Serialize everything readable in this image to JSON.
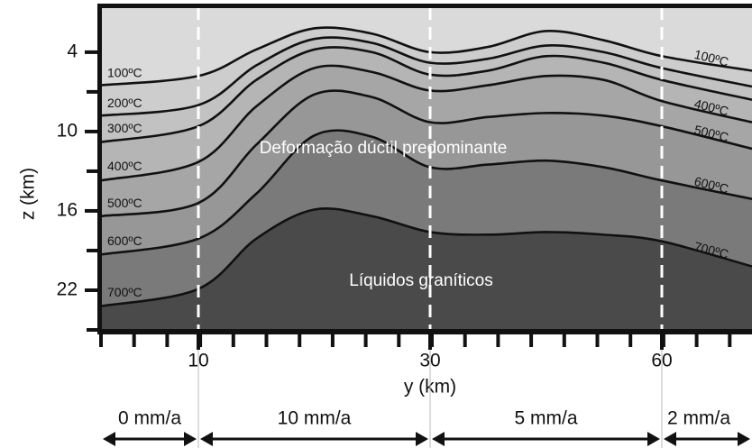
{
  "chart_data": {
    "type": "line",
    "x_label": "y (km)",
    "y_label": "z (km)",
    "x": [
      1.6,
      10,
      15,
      20,
      25,
      30,
      37.5,
      45,
      52.5,
      60,
      71.7
    ],
    "xlim": [
      1.6,
      71.7
    ],
    "xticks": [
      10,
      30,
      60
    ],
    "ylim": [
      0.6,
      25
    ],
    "yticks": [
      4,
      10,
      16,
      22
    ],
    "y_inverted": true,
    "background": "#dadada",
    "series": [
      {
        "name": "100ºC",
        "color": "#111111",
        "fill": "#cdcdcd",
        "label_right": true,
        "values": [
          6.5,
          5.8,
          3.8,
          2.2,
          2.6,
          4.0,
          3.6,
          2.4,
          3.1,
          4.3,
          5.4
        ]
      },
      {
        "name": "200ºC",
        "color": "#111111",
        "fill": "#c2c2c2",
        "label_right": false,
        "values": [
          8.8,
          8.0,
          5.0,
          3.0,
          3.3,
          4.8,
          4.5,
          3.5,
          4.0,
          5.2,
          6.6
        ]
      },
      {
        "name": "300ºC",
        "color": "#111111",
        "fill": "#b5b5b5",
        "label_right": false,
        "values": [
          10.8,
          9.6,
          6.1,
          3.8,
          4.0,
          5.7,
          5.4,
          4.3,
          4.8,
          6.1,
          7.6
        ]
      },
      {
        "name": "400ºC",
        "color": "#111111",
        "fill": "#a6a6a6",
        "label_right": true,
        "values": [
          13.7,
          12.3,
          8.1,
          5.2,
          5.5,
          6.9,
          6.5,
          5.8,
          6.1,
          7.7,
          9.3
        ]
      },
      {
        "name": "500ºC",
        "color": "#111111",
        "fill": "#979797",
        "label_right": true,
        "values": [
          16.4,
          15.4,
          11.0,
          7.2,
          7.4,
          9.3,
          8.9,
          8.6,
          8.8,
          9.6,
          11.3
        ]
      },
      {
        "name": "600ºC",
        "color": "#111111",
        "fill": "#7a7a7a",
        "label_right": true,
        "values": [
          19.3,
          18.1,
          14.7,
          10.3,
          10.4,
          12.7,
          12.5,
          12.2,
          12.7,
          13.7,
          15.1
        ]
      },
      {
        "name": "700ºC",
        "color": "#111111",
        "fill": "#4a4a4a",
        "label_right": true,
        "values": [
          23.2,
          21.9,
          18.1,
          15.9,
          16.4,
          17.6,
          17.8,
          17.6,
          17.8,
          18.3,
          20.2
        ]
      }
    ],
    "annotations": [
      "Deformação dúctil predominante",
      "Líquidos graníticos"
    ],
    "segments": [
      "0 mm/a",
      "10 mm/a",
      "5 mm/a",
      "2 mm/a"
    ]
  }
}
